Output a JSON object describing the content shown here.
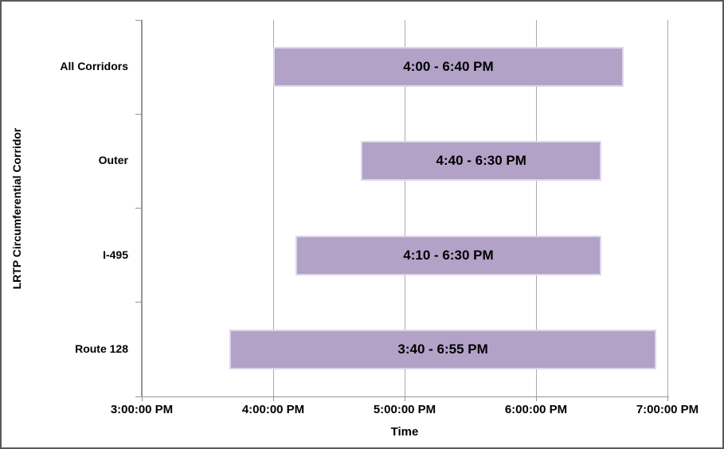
{
  "window": {
    "background": "#ffffff",
    "border_color": "#595959"
  },
  "chart_data": {
    "type": "bar",
    "orientation": "horizontal_range",
    "title": "",
    "xlabel": "Time",
    "ylabel": "LRTP Circumferential Corridor",
    "legend": false,
    "grid": true,
    "categories": [
      "All Corridors",
      "Outer",
      "I-495",
      "Route 128"
    ],
    "x_axis": {
      "min_hour": 15,
      "max_hour": 19,
      "ticks": [
        {
          "hour": 15,
          "label": "3:00:00 PM"
        },
        {
          "hour": 16,
          "label": "4:00:00 PM"
        },
        {
          "hour": 17,
          "label": "5:00:00 PM"
        },
        {
          "hour": 18,
          "label": "6:00:00 PM"
        },
        {
          "hour": 19,
          "label": "7:00:00 PM"
        }
      ]
    },
    "bars": [
      {
        "category": "All Corridors",
        "label": "4:00 - 6:40 PM",
        "start_hour": 16.0,
        "end_hour": 18.6667
      },
      {
        "category": "Outer",
        "label": "4:40 - 6:30 PM",
        "start_hour": 16.6667,
        "end_hour": 18.5
      },
      {
        "category": "I-495",
        "label": "4:10 - 6:30 PM",
        "start_hour": 16.1667,
        "end_hour": 18.5
      },
      {
        "category": "Route 128",
        "label": "3:40 - 6:55 PM",
        "start_hour": 15.6667,
        "end_hour": 18.9167
      }
    ],
    "colors": {
      "bar_fill": "#b2a2c7",
      "bar_border": "#ddd5ea",
      "gridline": "#ababab",
      "axis": "#969696",
      "text": "#000000"
    }
  }
}
